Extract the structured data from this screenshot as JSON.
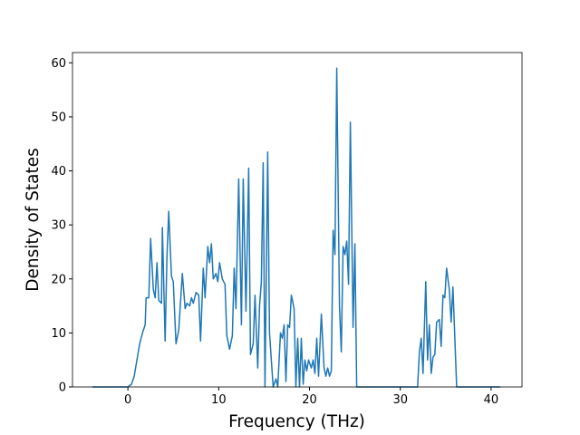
{
  "chart_data": {
    "type": "line",
    "xlabel": "Frequency (THz)",
    "ylabel": "Density of States",
    "color": "#1f77b4",
    "xlim": [
      -6.1,
      43.4
    ],
    "ylim": [
      0,
      61.9
    ],
    "xticks": [
      0,
      10,
      20,
      30,
      40
    ],
    "yticks": [
      0,
      10,
      20,
      30,
      40,
      50,
      60
    ],
    "x": [
      -3.9,
      0,
      0.4,
      0.7,
      1,
      1.3,
      1.6,
      1.9,
      2.0,
      2.3,
      2.5,
      2.8,
      3.0,
      3.2,
      3.4,
      3.7,
      3.8,
      4.1,
      4.3,
      4.5,
      4.8,
      5.0,
      5.3,
      5.6,
      6.0,
      6.3,
      6.5,
      6.8,
      7.0,
      7.2,
      7.5,
      7.8,
      8.0,
      8.3,
      8.5,
      8.8,
      9.0,
      9.2,
      9.4,
      9.7,
      9.9,
      10.1,
      10.4,
      10.7,
      10.9,
      11.2,
      11.5,
      11.7,
      11.9,
      12.2,
      12.5,
      12.7,
      13.0,
      13.3,
      13.5,
      13.8,
      14.0,
      14.3,
      14.5,
      14.7,
      14.9,
      15.1,
      15.4,
      15.6,
      16.0,
      16.3,
      16.5,
      16.8,
      17.0,
      17.2,
      17.4,
      17.6,
      17.8,
      18.0,
      18.3,
      18.5,
      18.7,
      18.9,
      19.1,
      19.3,
      19.5,
      19.7,
      19.9,
      20.2,
      20.4,
      20.6,
      20.8,
      21.0,
      21.3,
      21.6,
      21.8,
      22.0,
      22.2,
      22.4,
      22.6,
      22.8,
      23.0,
      23.3,
      23.5,
      23.7,
      23.9,
      24.1,
      24.3,
      24.5,
      24.8,
      25.0,
      25.2,
      31.9,
      32.1,
      32.3,
      32.5,
      32.8,
      33.0,
      33.2,
      33.4,
      33.6,
      33.8,
      34.0,
      34.3,
      34.5,
      34.7,
      34.9,
      35.1,
      35.4,
      35.6,
      35.8,
      36.0,
      36.2,
      41
    ],
    "values": [
      0,
      0,
      0.5,
      2,
      5,
      8,
      10,
      11.5,
      16.5,
      16.5,
      27.5,
      18,
      16.5,
      23,
      16,
      15.5,
      29.5,
      8.5,
      24,
      32.5,
      20.5,
      19.5,
      8,
      10.5,
      21,
      14.5,
      15.5,
      15,
      16.5,
      15.5,
      17.5,
      17,
      8.5,
      22,
      16.5,
      26,
      23,
      26.5,
      20,
      21,
      19.5,
      23,
      20,
      19,
      9.5,
      7,
      9.5,
      22,
      14.5,
      38.5,
      11.5,
      38.5,
      14,
      40.5,
      6,
      8,
      17,
      3.5,
      15,
      19.5,
      41.5,
      0,
      43.5,
      10,
      0,
      1.5,
      0,
      10,
      9,
      11.5,
      1,
      11.5,
      11,
      17,
      14.5,
      0,
      9,
      0,
      9,
      0.5,
      5,
      3,
      5,
      3.5,
      5,
      2.5,
      9,
      2,
      13.5,
      3.5,
      2,
      3.5,
      2,
      3,
      29,
      24.5,
      59,
      15,
      6.5,
      26,
      24.5,
      27,
      19,
      49,
      11,
      26.5,
      0,
      0,
      6.5,
      9,
      2.5,
      19.5,
      5,
      11.5,
      2.5,
      5.5,
      6,
      12,
      12.5,
      7.5,
      17,
      16.5,
      22,
      18,
      12,
      18.5,
      9,
      0,
      0
    ]
  }
}
